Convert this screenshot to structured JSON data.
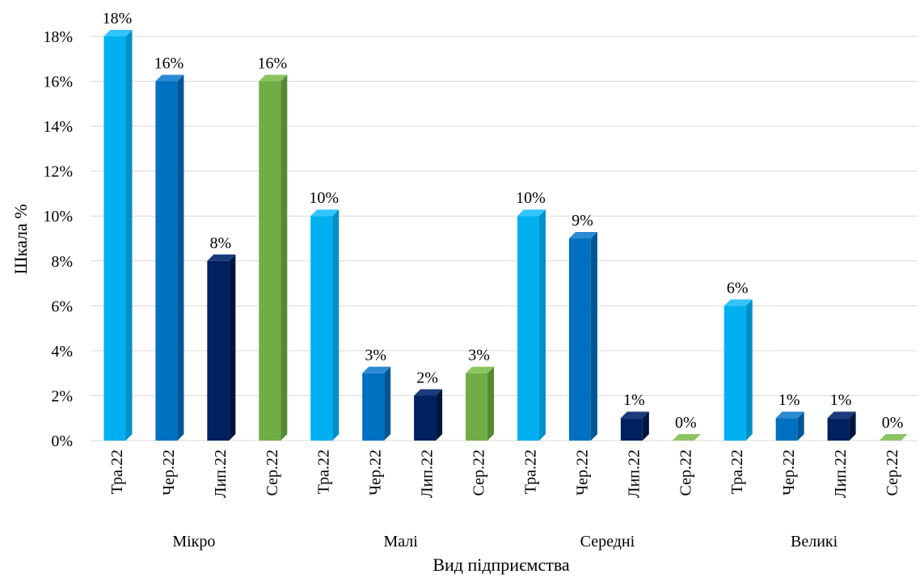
{
  "chart_data": {
    "type": "bar",
    "xlabel": "Вид підприємства",
    "ylabel": "Шкала %",
    "ylim": [
      0,
      18
    ],
    "yticks": [
      "0%",
      "2%",
      "4%",
      "6%",
      "8%",
      "10%",
      "12%",
      "14%",
      "16%",
      "18%"
    ],
    "grid": true,
    "legend": "none",
    "groups": [
      {
        "name": "Мікро",
        "bars": [
          {
            "category": "Тра.22",
            "value": 18,
            "label": "18%"
          },
          {
            "category": "Чер.22",
            "value": 16,
            "label": "16%"
          },
          {
            "category": "Лип.22",
            "value": 8,
            "label": "8%"
          },
          {
            "category": "Сер.22",
            "value": 16,
            "label": "16%"
          }
        ]
      },
      {
        "name": "Малі",
        "bars": [
          {
            "category": "Тра.22",
            "value": 10,
            "label": "10%"
          },
          {
            "category": "Чер.22",
            "value": 3,
            "label": "3%"
          },
          {
            "category": "Лип.22",
            "value": 2,
            "label": "2%"
          },
          {
            "category": "Сер.22",
            "value": 3,
            "label": "3%"
          }
        ]
      },
      {
        "name": "Середні",
        "bars": [
          {
            "category": "Тра.22",
            "value": 10,
            "label": "10%"
          },
          {
            "category": "Чер.22",
            "value": 9,
            "label": "9%"
          },
          {
            "category": "Лип.22",
            "value": 1,
            "label": "1%"
          },
          {
            "category": "Сер.22",
            "value": 0,
            "label": "0%"
          }
        ]
      },
      {
        "name": "Великі",
        "bars": [
          {
            "category": "Тра.22",
            "value": 6,
            "label": "6%"
          },
          {
            "category": "Чер.22",
            "value": 1,
            "label": "1%"
          },
          {
            "category": "Лип.22",
            "value": 1,
            "label": "1%"
          },
          {
            "category": "Сер.22",
            "value": 0,
            "label": "0%"
          }
        ]
      }
    ],
    "category_colors": {
      "Тра.22": {
        "front": "#00b0f0",
        "side": "#0090c8",
        "top": "#33c4ff"
      },
      "Чер.22": {
        "front": "#0070c0",
        "side": "#005696",
        "top": "#2a8ad4"
      },
      "Лип.22": {
        "front": "#002060",
        "side": "#00163f",
        "top": "#1a3a7c"
      },
      "Сер.22": {
        "front": "#70ad47",
        "side": "#548a33",
        "top": "#8cc461"
      }
    }
  }
}
